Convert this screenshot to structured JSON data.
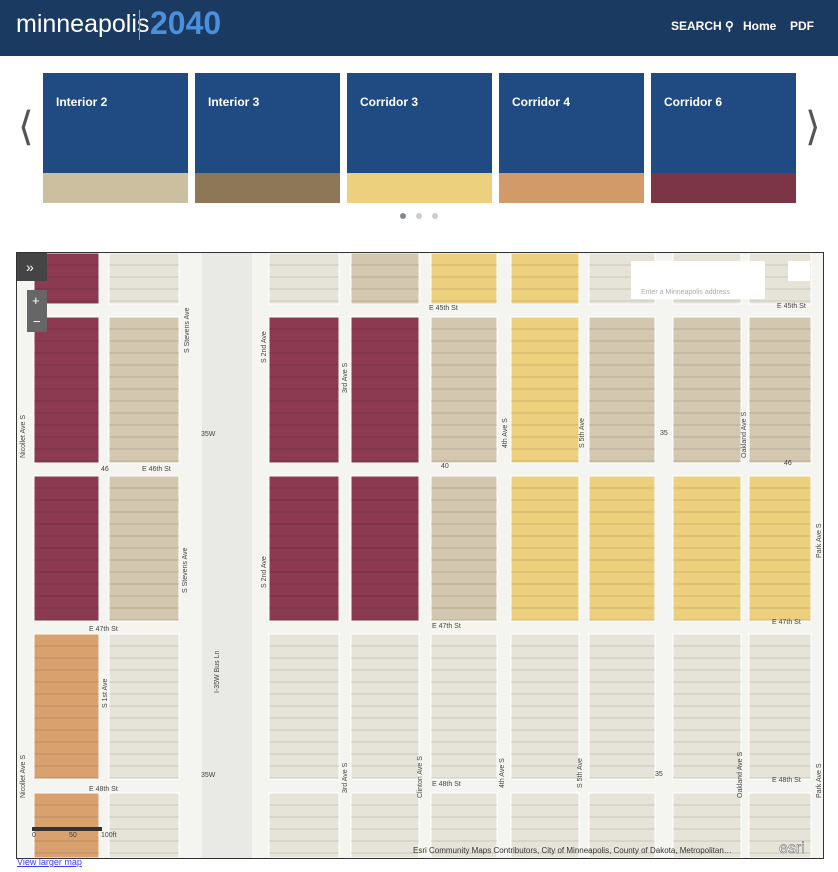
{
  "header": {
    "logo": "minneapolis",
    "year": "2040",
    "nav": [
      "SEARCH",
      "Home",
      "PDF"
    ]
  },
  "cards": [
    {
      "title": "Interior 2",
      "color": "#cbbf9f"
    },
    {
      "title": "Interior 3",
      "color": "#8e7756"
    },
    {
      "title": "Corridor 3",
      "color": "#ecd07e"
    },
    {
      "title": "Corridor 4",
      "color": "#d39a69"
    },
    {
      "title": "Corridor 6",
      "color": "#7c3447"
    }
  ],
  "map": {
    "search_placeholder": "Enter a Minneapolis address",
    "zoom": [
      "+",
      "−"
    ],
    "expand": "»",
    "labels": [
      "E 45th St",
      "E 45th St",
      "E 46th St",
      "E 47th St",
      "E 47th St",
      "E 47th St",
      "E 48th St",
      "E 48th St",
      "E 48th St",
      "Nicollet Ave S",
      "Nicollet Ave S",
      "S Stevens Ave",
      "S Stevens Ave",
      "S 2nd Ave",
      "S 2nd Ave",
      "3rd Ave S",
      "3rd Ave S",
      "4th Ave S",
      "4th Ave S",
      "S 5th Ave",
      "S 5th Ave",
      "Oakland Ave S",
      "Oakland Ave S",
      "Park Ave S",
      "Park Ave S",
      "S 1st Ave",
      "I-35W Bus Ln",
      "Clinton Ave S"
    ],
    "shields": [
      "35W",
      "46",
      "40",
      "35",
      "46",
      "35W",
      "35"
    ],
    "scale": [
      "0",
      "50",
      "100ft"
    ],
    "attribution": "Esri Community Maps Contributors, City of Minneapolis, County of Dakota, Metropolitan…",
    "brand": "esri"
  },
  "link": "View larger map"
}
